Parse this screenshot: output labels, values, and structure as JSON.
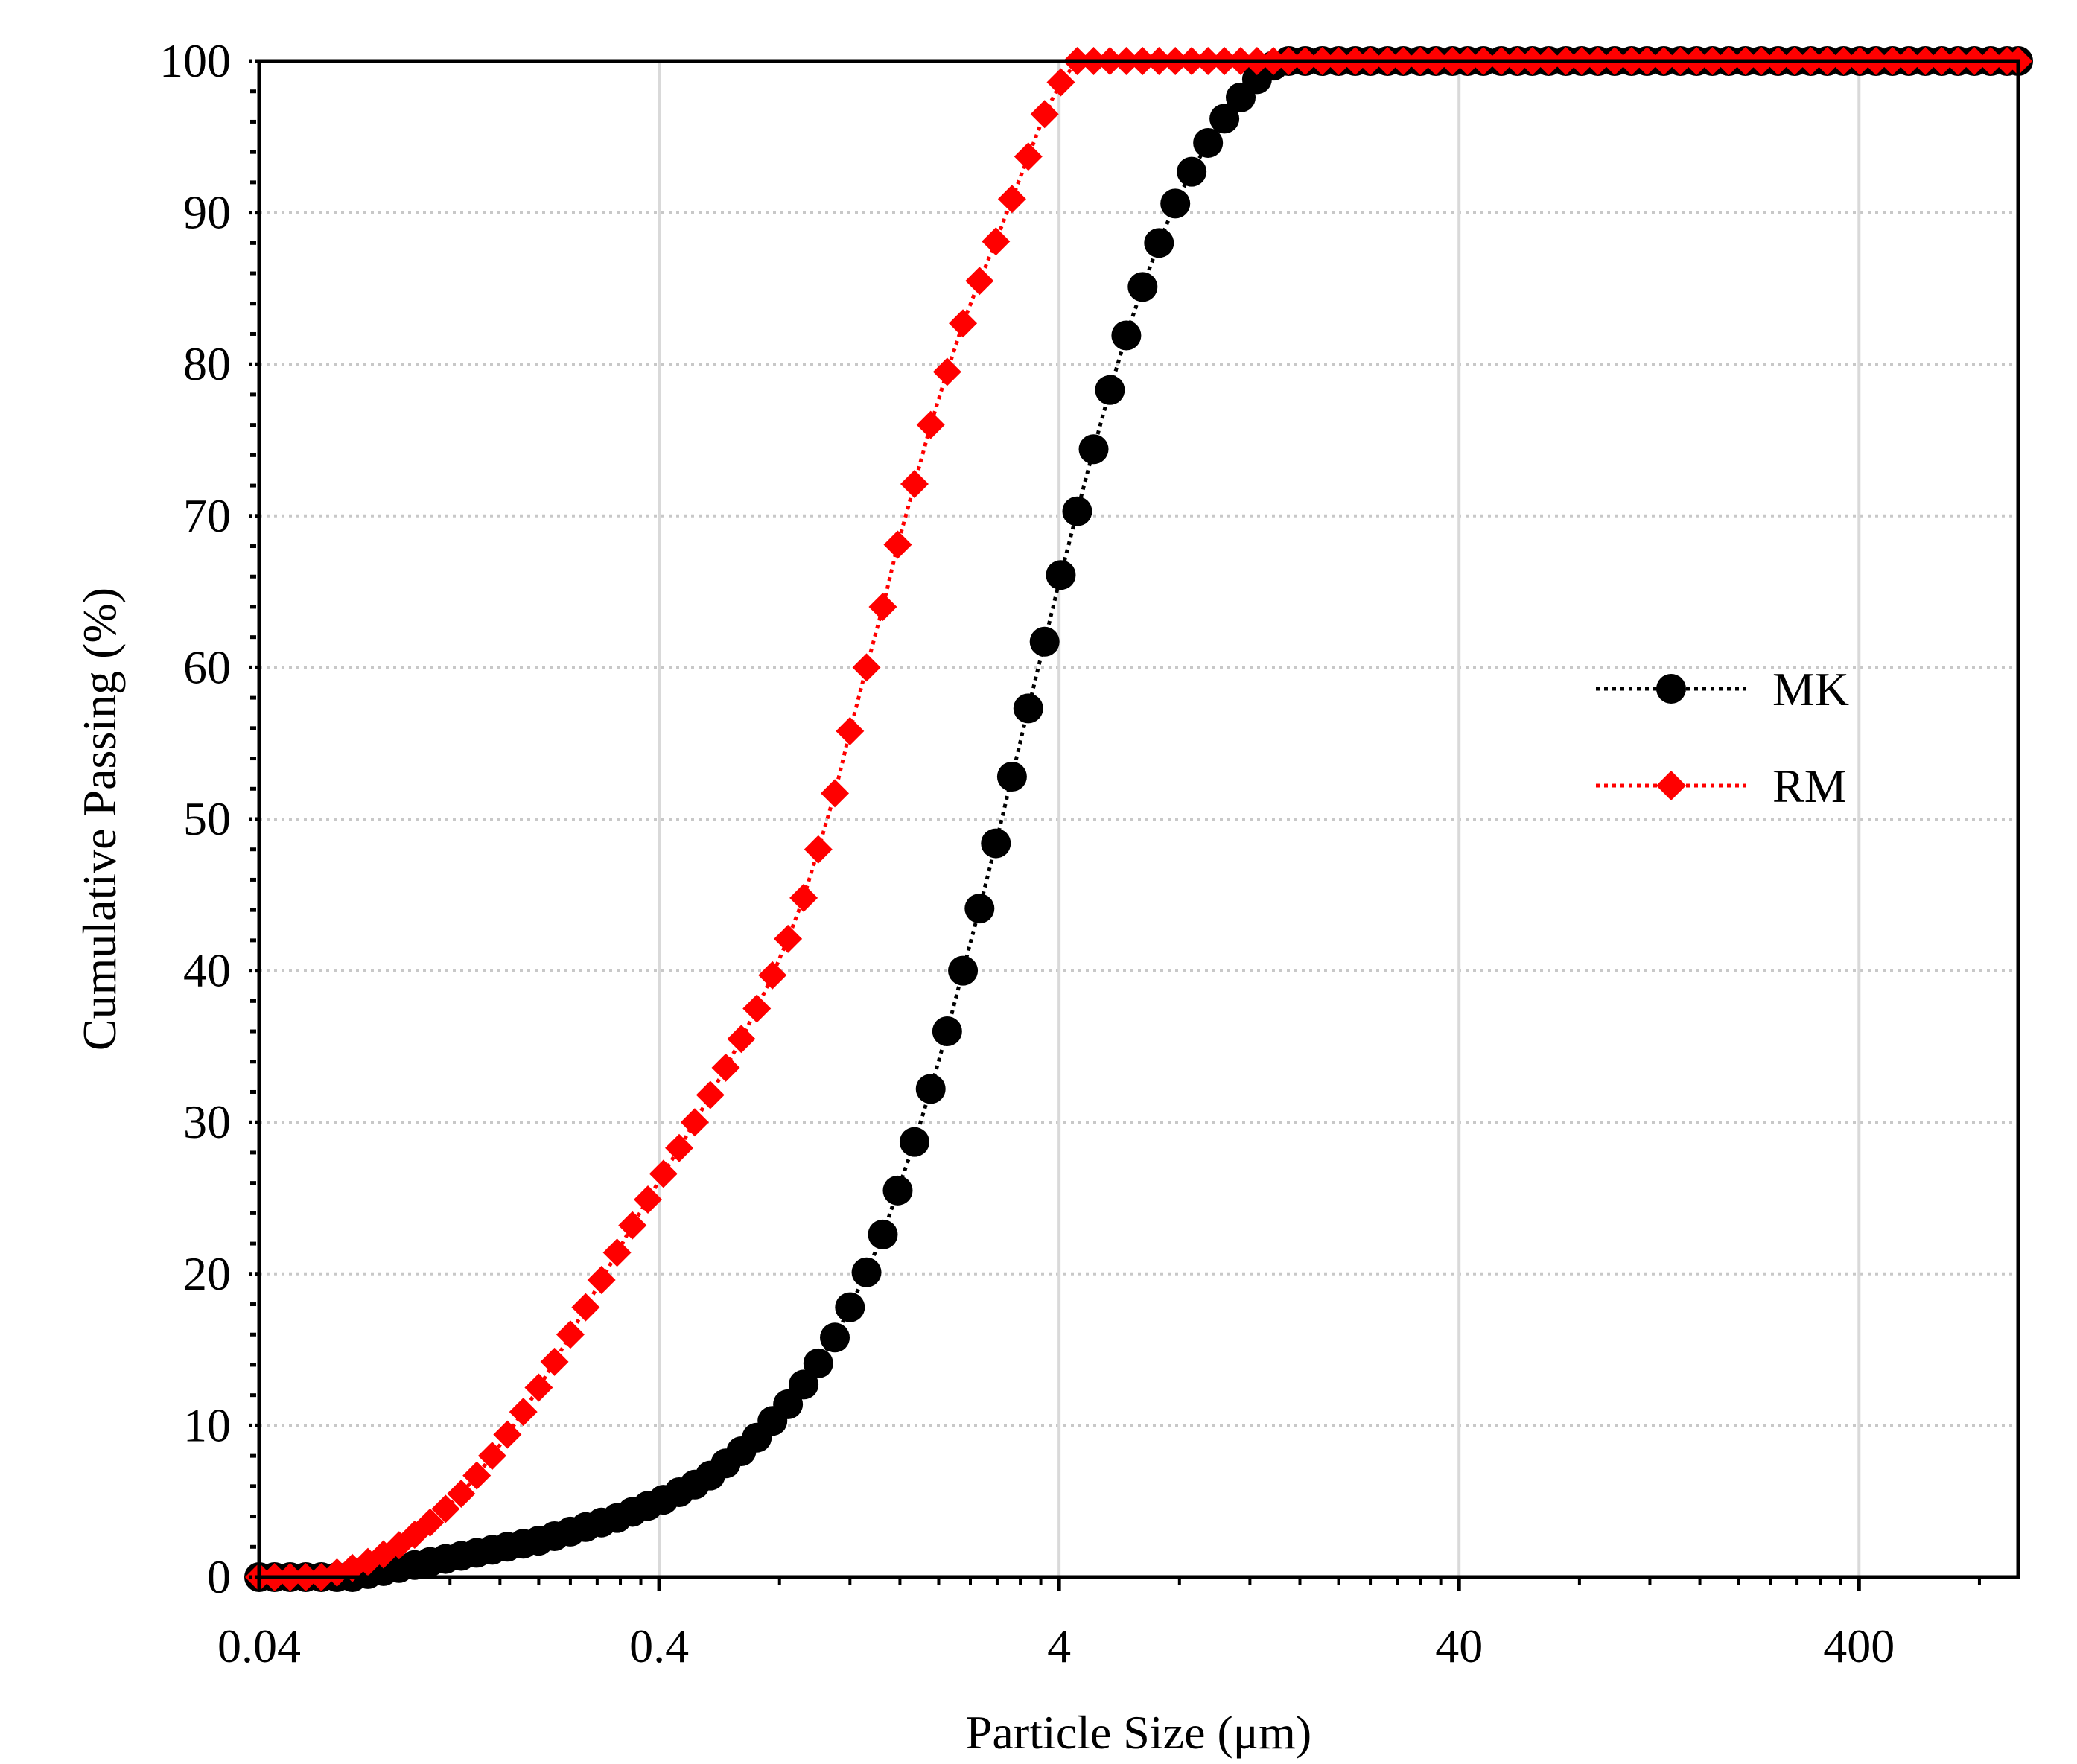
{
  "chart_data": {
    "type": "scatter",
    "title": "",
    "xlabel": "Particle Size (μm)",
    "ylabel": "Cumulative Passing (%)",
    "xscale": "log",
    "xlim": [
      0.04,
      1000
    ],
    "ylim": [
      0,
      100
    ],
    "xticks": [
      {
        "value": 0.04,
        "label": "0.04"
      },
      {
        "value": 0.4,
        "label": "0.4"
      },
      {
        "value": 4,
        "label": "4"
      },
      {
        "value": 40,
        "label": "40"
      },
      {
        "value": 400,
        "label": "400"
      }
    ],
    "yticks": [
      {
        "value": 0,
        "label": "0"
      },
      {
        "value": 10,
        "label": "10"
      },
      {
        "value": 20,
        "label": "20"
      },
      {
        "value": 30,
        "label": "30"
      },
      {
        "value": 40,
        "label": "40"
      },
      {
        "value": 50,
        "label": "50"
      },
      {
        "value": 60,
        "label": "60"
      },
      {
        "value": 70,
        "label": "70"
      },
      {
        "value": 80,
        "label": "80"
      },
      {
        "value": 90,
        "label": "90"
      },
      {
        "value": 100,
        "label": "100"
      }
    ],
    "grid": true,
    "legend_position": "right-middle",
    "series": [
      {
        "name": "MK",
        "color": "#000000",
        "marker": "circle",
        "line": "dotted",
        "x": [
          0.04,
          0.0437,
          0.0478,
          0.0523,
          0.0572,
          0.0626,
          0.0684,
          0.0748,
          0.0818,
          0.0895,
          0.0979,
          0.107,
          0.117,
          0.128,
          0.14,
          0.153,
          0.167,
          0.183,
          0.2,
          0.219,
          0.24,
          0.262,
          0.287,
          0.314,
          0.343,
          0.375,
          0.41,
          0.449,
          0.491,
          0.537,
          0.587,
          0.642,
          0.702,
          0.768,
          0.84,
          0.919,
          1.0,
          1.1,
          1.2,
          1.32,
          1.45,
          1.58,
          1.74,
          1.91,
          2.1,
          2.3,
          2.53,
          2.78,
          3.05,
          3.35,
          3.68,
          4.04,
          4.44,
          4.88,
          5.36,
          5.89,
          6.47,
          7.11,
          7.81,
          8.58,
          9.43,
          10.36,
          11.38,
          12.5,
          13.74,
          15.0,
          16.5,
          18.2,
          20.0,
          22.0,
          24.0,
          26.5,
          29.0,
          32.0,
          35.0,
          38.5,
          42.0,
          46.0,
          51.0,
          56.0,
          61.0,
          67.0,
          74.0,
          81.0,
          89.0,
          98.0,
          108.0,
          118.0,
          130.0,
          143.0,
          157.0,
          172.0,
          189.0,
          208.0,
          228.0,
          251.0,
          276.0,
          303.0,
          333.0,
          366.0,
          402.0,
          441.0,
          485.0,
          533.0,
          586.0,
          644.0,
          707.0,
          777.0,
          854.0,
          938.0,
          1000.0
        ],
        "y": [
          0,
          0,
          0,
          0,
          0,
          0,
          0,
          0.2,
          0.4,
          0.6,
          0.8,
          1.0,
          1.2,
          1.4,
          1.6,
          1.8,
          2.0,
          2.2,
          2.4,
          2.7,
          3.0,
          3.3,
          3.6,
          3.9,
          4.3,
          4.7,
          5.1,
          5.6,
          6.1,
          6.7,
          7.5,
          8.3,
          9.2,
          10.3,
          11.4,
          12.7,
          14.1,
          15.8,
          17.8,
          20.1,
          22.6,
          25.5,
          28.7,
          32.2,
          36.0,
          40.0,
          44.1,
          48.4,
          52.8,
          57.3,
          61.7,
          66.1,
          70.3,
          74.4,
          78.3,
          81.9,
          85.1,
          88.0,
          90.6,
          92.7,
          94.6,
          96.2,
          97.6,
          98.8,
          99.7,
          100,
          100,
          100,
          100,
          100,
          100,
          100,
          100,
          100,
          100,
          100,
          100,
          100,
          100,
          100,
          100,
          100,
          100,
          100,
          100,
          100,
          100,
          100,
          100,
          100,
          100,
          100,
          100,
          100,
          100,
          100,
          100,
          100,
          100,
          100,
          100,
          100,
          100,
          100,
          100,
          100,
          100,
          100,
          100,
          100,
          100
        ]
      },
      {
        "name": "RM",
        "color": "#ff0000",
        "marker": "diamond",
        "line": "dotted",
        "x": [
          0.04,
          0.0437,
          0.0478,
          0.0523,
          0.0572,
          0.0626,
          0.0684,
          0.0748,
          0.0818,
          0.0895,
          0.0979,
          0.107,
          0.117,
          0.128,
          0.14,
          0.153,
          0.167,
          0.183,
          0.2,
          0.219,
          0.24,
          0.262,
          0.287,
          0.314,
          0.343,
          0.375,
          0.41,
          0.449,
          0.491,
          0.537,
          0.587,
          0.642,
          0.702,
          0.768,
          0.84,
          0.919,
          1.0,
          1.1,
          1.2,
          1.32,
          1.45,
          1.58,
          1.74,
          1.91,
          2.1,
          2.3,
          2.53,
          2.78,
          3.05,
          3.35,
          3.68,
          4.04,
          4.44,
          4.88,
          5.36,
          5.89,
          6.47,
          7.11,
          7.81,
          8.58,
          9.43,
          10.36,
          11.38,
          12.5,
          13.74,
          15.0,
          16.5,
          18.2,
          20.0,
          22.0,
          24.0,
          26.5,
          29.0,
          32.0,
          35.0,
          38.5,
          42.0,
          46.0,
          51.0,
          56.0,
          61.0,
          67.0,
          74.0,
          81.0,
          89.0,
          98.0,
          108.0,
          118.0,
          130.0,
          143.0,
          157.0,
          172.0,
          189.0,
          208.0,
          228.0,
          251.0,
          276.0,
          303.0,
          333.0,
          366.0,
          402.0,
          441.0,
          485.0,
          533.0,
          586.0,
          644.0,
          707.0,
          777.0,
          854.0,
          938.0,
          1000.0
        ],
        "y": [
          0,
          0,
          0,
          0,
          0,
          0.3,
          0.6,
          1.0,
          1.5,
          2.1,
          2.8,
          3.6,
          4.5,
          5.5,
          6.7,
          8.0,
          9.4,
          10.9,
          12.5,
          14.2,
          16.0,
          17.8,
          19.6,
          21.4,
          23.2,
          24.9,
          26.6,
          28.3,
          30.0,
          31.8,
          33.6,
          35.5,
          37.5,
          39.7,
          42.1,
          44.8,
          48.0,
          51.7,
          55.8,
          60.0,
          64.0,
          68.1,
          72.1,
          76.0,
          79.5,
          82.7,
          85.5,
          88.1,
          90.9,
          93.7,
          96.5,
          98.6,
          100,
          100,
          100,
          100,
          100,
          100,
          100,
          100,
          100,
          100,
          100,
          100,
          100,
          100,
          100,
          100,
          100,
          100,
          100,
          100,
          100,
          100,
          100,
          100,
          100,
          100,
          100,
          100,
          100,
          100,
          100,
          100,
          100,
          100,
          100,
          100,
          100,
          100,
          100,
          100,
          100,
          100,
          100,
          100,
          100,
          100,
          100,
          100,
          100,
          100,
          100,
          100,
          100,
          100,
          100,
          100,
          100,
          100,
          100
        ]
      }
    ]
  }
}
